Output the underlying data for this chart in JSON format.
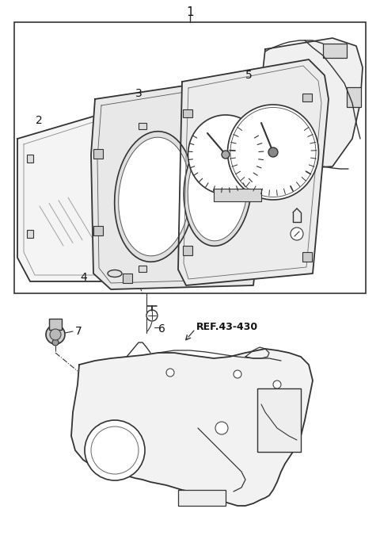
{
  "bg_color": "#ffffff",
  "line_color": "#333333",
  "fig_width": 4.8,
  "fig_height": 6.9,
  "dpi": 100,
  "ref_color": "#000000",
  "ref_bold_color": "#111111"
}
